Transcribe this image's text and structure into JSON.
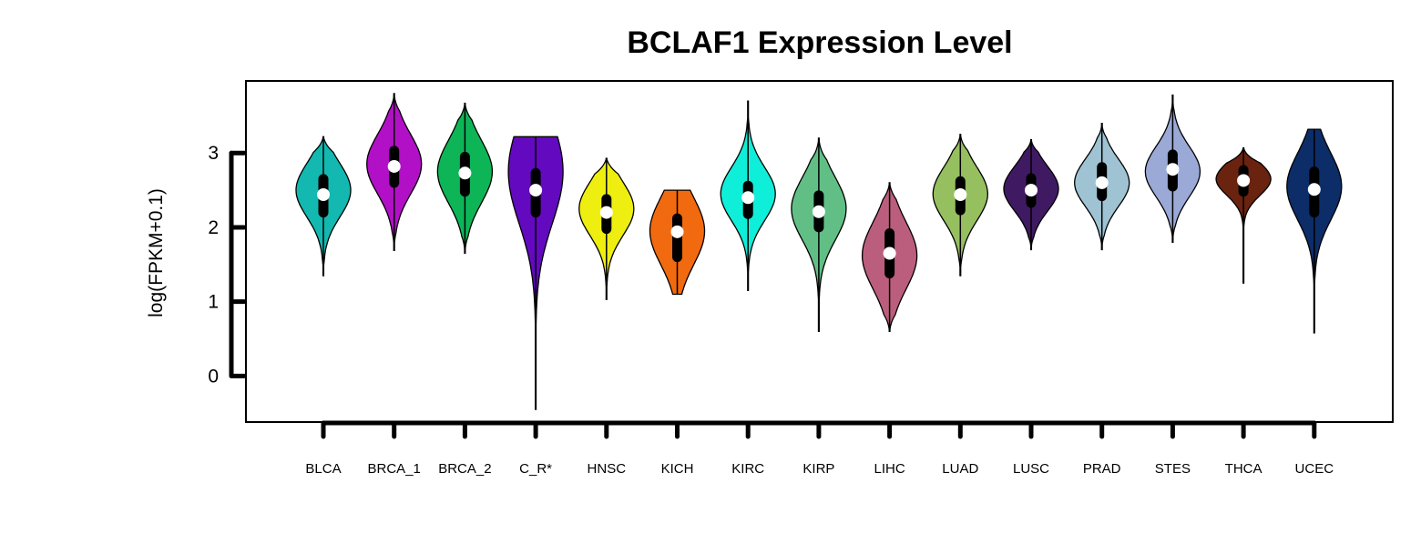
{
  "chart_data": {
    "type": "violin",
    "title": "BCLAF1 Expression Level",
    "ylabel": "log(FPKM+0.1)",
    "xlabel": "",
    "ylim": [
      -0.62,
      3.97
    ],
    "yticks": [
      0,
      1,
      2,
      3
    ],
    "grid": false,
    "legend": "none",
    "categories": [
      "BLCA",
      "BRCA_1",
      "BRCA_2",
      "C_R*",
      "HNSC",
      "KICH",
      "KIRC",
      "KIRP",
      "LIHC",
      "LUAD",
      "LUSC",
      "PRAD",
      "STES",
      "THCA",
      "UCEC"
    ],
    "series": [
      {
        "category": "BLCA",
        "color": "#13B8B0",
        "min": 1.35,
        "max": 3.22,
        "q1": 2.2,
        "median": 2.44,
        "q3": 2.65,
        "mode": 2.5,
        "spread": 0.36,
        "flat": 0
      },
      {
        "category": "BRCA_1",
        "color": "#B210C6",
        "min": 1.69,
        "max": 3.8,
        "q1": 2.6,
        "median": 2.82,
        "q3": 3.03,
        "mode": 2.85,
        "spread": 0.4,
        "flat": 0
      },
      {
        "category": "BRCA_2",
        "color": "#0DB557",
        "min": 1.65,
        "max": 3.67,
        "q1": 2.48,
        "median": 2.73,
        "q3": 2.95,
        "mode": 2.75,
        "spread": 0.42,
        "flat": 0
      },
      {
        "category": "C_R*",
        "color": "#6309BF",
        "min": -0.45,
        "max": 3.22,
        "q1": 2.2,
        "median": 2.5,
        "q3": 2.73,
        "mode": 2.75,
        "spread": 0.7,
        "flat": 1
      },
      {
        "category": "HNSC",
        "color": "#EEEE11",
        "min": 1.03,
        "max": 2.93,
        "q1": 1.98,
        "median": 2.2,
        "q3": 2.38,
        "mode": 2.25,
        "spread": 0.36,
        "flat": 0
      },
      {
        "category": "KICH",
        "color": "#F26A0F",
        "min": 1.1,
        "max": 2.5,
        "q1": 1.6,
        "median": 1.94,
        "q3": 2.12,
        "mode": 1.95,
        "spread": 0.45,
        "flat": 1
      },
      {
        "category": "KIRC",
        "color": "#0FEED8",
        "min": 1.15,
        "max": 3.7,
        "q1": 2.18,
        "median": 2.4,
        "q3": 2.56,
        "mode": 2.45,
        "spread": 0.36,
        "flat": 0
      },
      {
        "category": "KIRP",
        "color": "#61BF86",
        "min": 0.6,
        "max": 3.2,
        "q1": 2.0,
        "median": 2.21,
        "q3": 2.43,
        "mode": 2.25,
        "spread": 0.42,
        "flat": 0
      },
      {
        "category": "LIHC",
        "color": "#BB5E7D",
        "min": 0.6,
        "max": 2.6,
        "q1": 1.38,
        "median": 1.65,
        "q3": 1.92,
        "mode": 1.62,
        "spread": 0.45,
        "flat": 0
      },
      {
        "category": "LUAD",
        "color": "#96BF60",
        "min": 1.35,
        "max": 3.25,
        "q1": 2.23,
        "median": 2.44,
        "q3": 2.62,
        "mode": 2.45,
        "spread": 0.36,
        "flat": 0
      },
      {
        "category": "LUSC",
        "color": "#3F1A62",
        "min": 1.7,
        "max": 3.18,
        "q1": 2.33,
        "median": 2.5,
        "q3": 2.66,
        "mode": 2.52,
        "spread": 0.3,
        "flat": 0
      },
      {
        "category": "PRAD",
        "color": "#9FC3D2",
        "min": 1.7,
        "max": 3.4,
        "q1": 2.42,
        "median": 2.6,
        "q3": 2.81,
        "mode": 2.6,
        "spread": 0.32,
        "flat": 0
      },
      {
        "category": "STES",
        "color": "#9AA9D6",
        "min": 1.8,
        "max": 3.78,
        "q1": 2.55,
        "median": 2.78,
        "q3": 2.98,
        "mode": 2.75,
        "spread": 0.34,
        "flat": 0
      },
      {
        "category": "THCA",
        "color": "#6A230F",
        "min": 1.25,
        "max": 3.07,
        "q1": 2.48,
        "median": 2.63,
        "q3": 2.77,
        "mode": 2.65,
        "spread": 0.22,
        "flat": 0
      },
      {
        "category": "UCEC",
        "color": "#0C2D67",
        "min": 0.58,
        "max": 3.32,
        "q1": 2.2,
        "median": 2.51,
        "q3": 2.75,
        "mode": 2.55,
        "spread": 0.45,
        "flat": 1
      }
    ]
  }
}
